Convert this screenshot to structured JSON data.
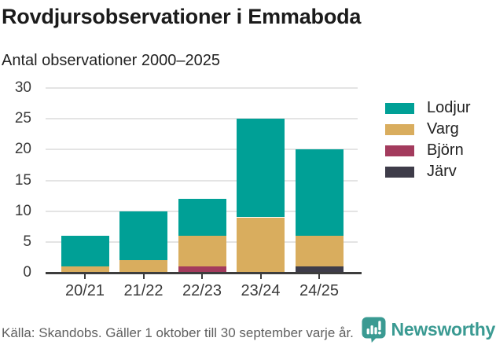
{
  "header": {
    "title": "Rovdjursobservationer i Emmaboda",
    "subtitle": "Antal observationer 2000–2025"
  },
  "chart_data": {
    "type": "bar",
    "stacked": true,
    "title": "Rovdjursobservationer i Emmaboda",
    "subtitle": "Antal observationer 2000–2025",
    "categories": [
      "20/21",
      "21/22",
      "22/23",
      "23/24",
      "24/25"
    ],
    "series": [
      {
        "name": "Lodjur",
        "color": "#00a096",
        "values": [
          5,
          8,
          6,
          16,
          14
        ]
      },
      {
        "name": "Varg",
        "color": "#d9ad5e",
        "values": [
          1,
          2,
          5,
          9,
          5
        ]
      },
      {
        "name": "Björn",
        "color": "#a33b5d",
        "values": [
          0,
          0,
          1,
          0,
          0
        ]
      },
      {
        "name": "Järv",
        "color": "#3e3c49",
        "values": [
          0,
          0,
          0,
          0,
          1
        ]
      }
    ],
    "totals": [
      6,
      10,
      12,
      25,
      20
    ],
    "xlabel": "",
    "ylabel": "",
    "ylim": [
      0,
      30
    ],
    "yticks": [
      0,
      5,
      10,
      15,
      20,
      25,
      30
    ],
    "grid": true,
    "legend_position": "right",
    "stack_order_bottom_to_top": [
      "Järv",
      "Björn",
      "Varg",
      "Lodjur"
    ]
  },
  "footer": {
    "source": "Källa: Skandobs. Gäller 1 oktober till 30 september varje år.",
    "brand": "Newsworthy",
    "brand_color": "#3a9a92"
  },
  "colors": {
    "gridline": "#e4e4e4",
    "axis": "#3d3d3d",
    "tick_text": "#3a3a3a",
    "title_text": "#1b1b1b",
    "source_text": "#606060"
  }
}
